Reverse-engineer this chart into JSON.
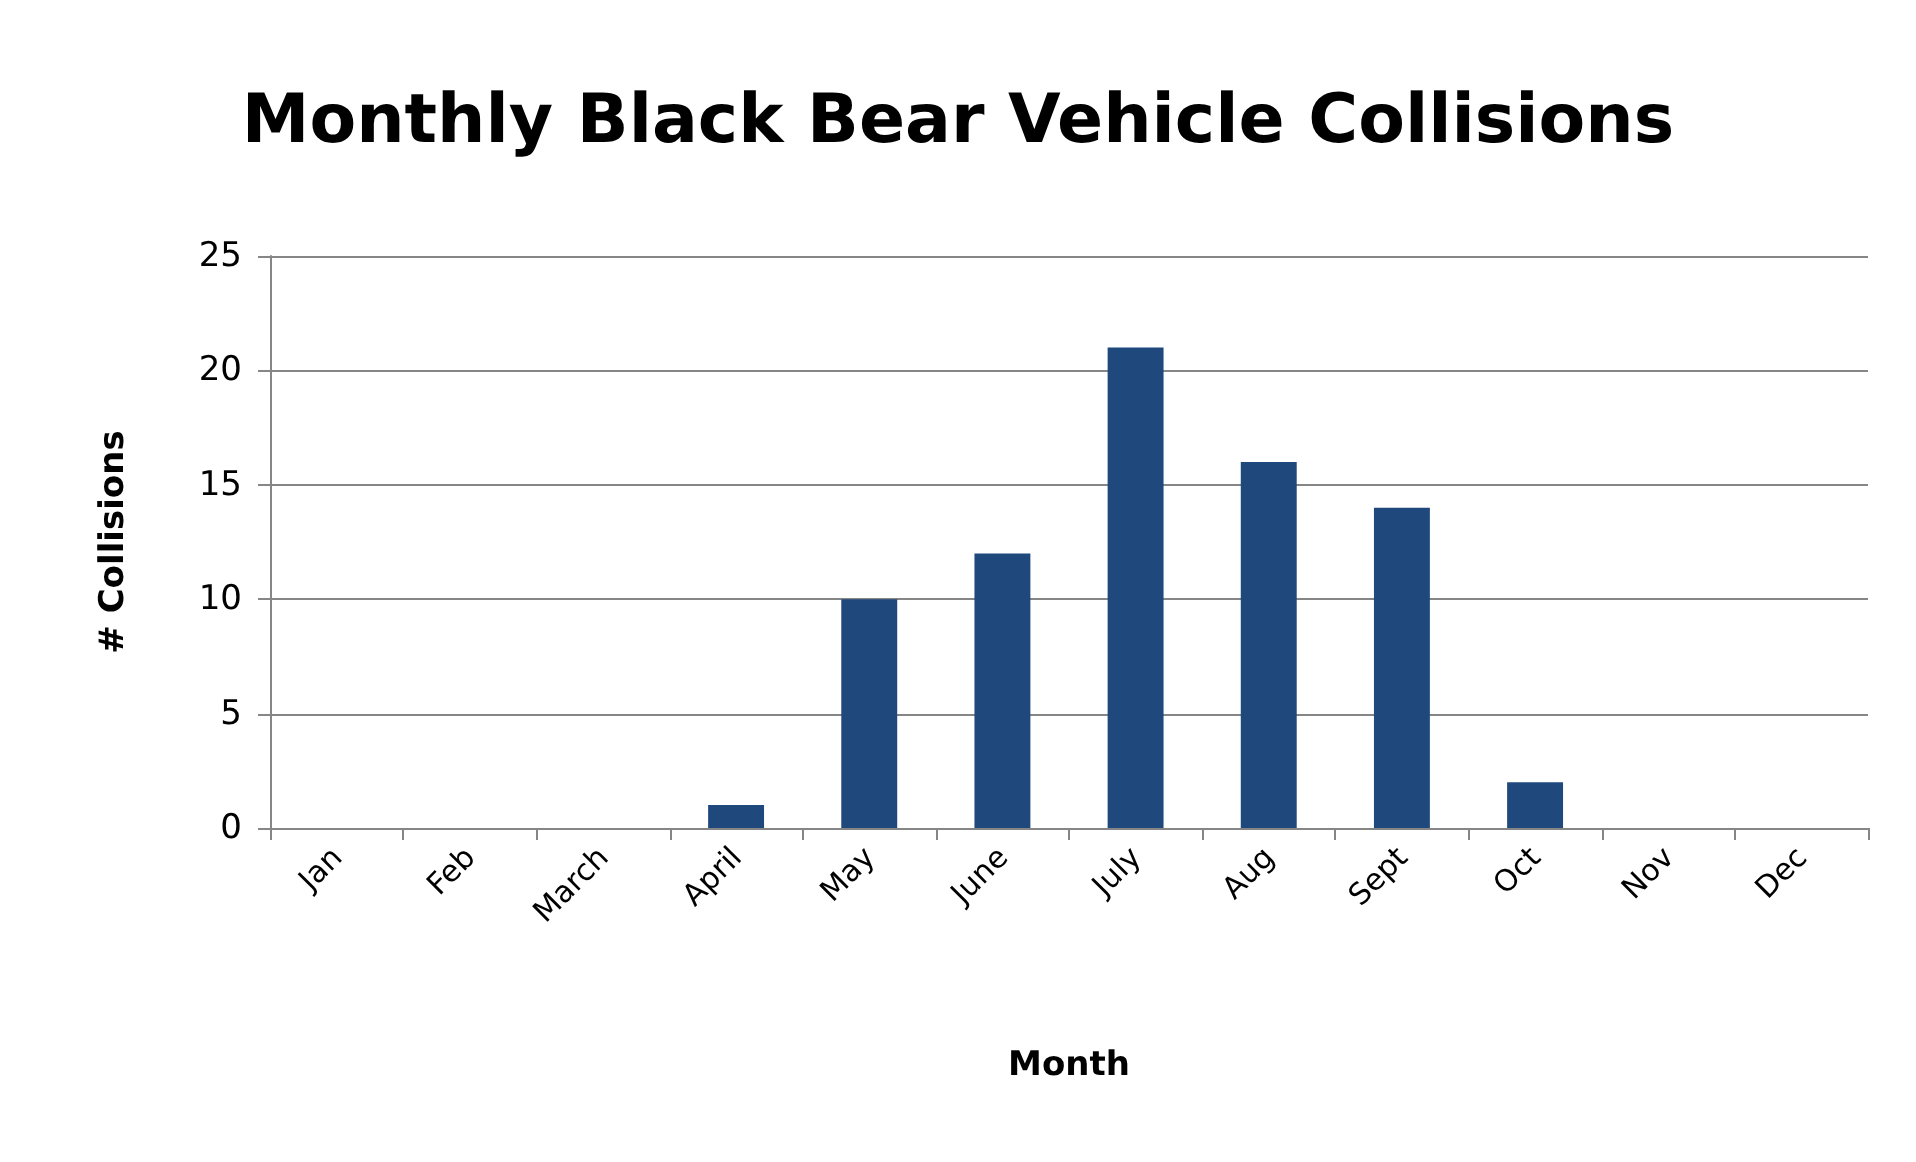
{
  "chart_data": {
    "type": "bar",
    "title": "Monthly Black Bear Vehicle Collisions",
    "xlabel": "Month",
    "ylabel": "# Collisions",
    "categories": [
      "Jan",
      "Feb",
      "March",
      "April",
      "May",
      "June",
      "July",
      "Aug",
      "Sept",
      "Oct",
      "Nov",
      "Dec"
    ],
    "values": [
      0,
      0,
      0,
      1,
      10,
      12,
      21,
      16,
      14,
      2,
      0,
      0
    ],
    "color": "#1f497d",
    "ylim": [
      0,
      25
    ],
    "yticks": [
      0,
      5,
      10,
      15,
      20,
      25
    ],
    "grid": "y"
  }
}
